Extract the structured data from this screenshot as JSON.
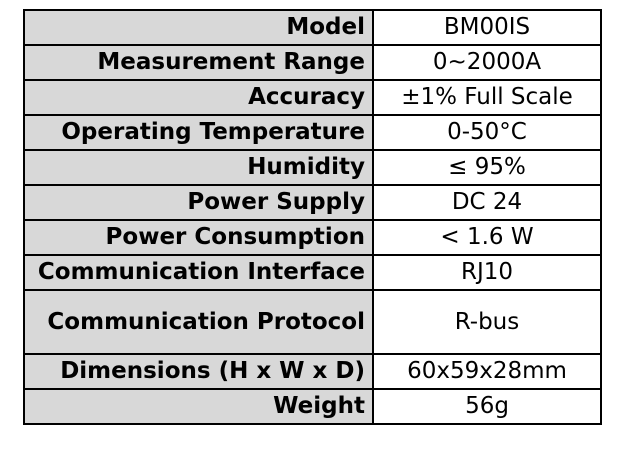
{
  "table": {
    "rows": [
      {
        "label": "Model",
        "value": "BM00IS"
      },
      {
        "label": "Measurement Range",
        "value": "0~2000A"
      },
      {
        "label": "Accuracy",
        "value": "±1% Full Scale"
      },
      {
        "label": "Operating Temperature",
        "value": "0-50°C"
      },
      {
        "label": "Humidity",
        "value": "≤ 95%"
      },
      {
        "label": "Power Supply",
        "value": "DC 24"
      },
      {
        "label": "Power Consumption",
        "value": "< 1.6 W"
      },
      {
        "label": "Communication Interface",
        "value": "RJ10"
      },
      {
        "label": "Communication Protocol",
        "value": "R-bus"
      },
      {
        "label": "Dimensions (H x W x D)",
        "value": "60x59x28mm"
      },
      {
        "label": "Weight",
        "value": "56g"
      }
    ]
  },
  "colors": {
    "label_background": "#d8d8d8",
    "value_background": "#ffffff",
    "border": "#000000"
  }
}
